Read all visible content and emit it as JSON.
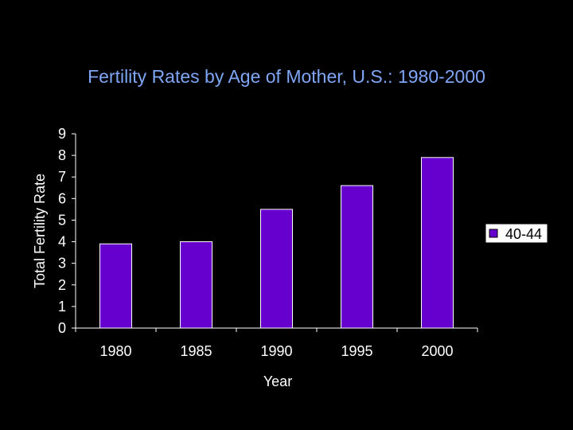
{
  "colors": {
    "background": "#000000",
    "bar": "#6600cc",
    "bar_border": "#ffffff",
    "title": "#7fa6f5",
    "text": "#ffffff"
  },
  "chart_data": {
    "type": "bar",
    "title": "Fertility Rates by Age of Mother, U.S.: 1980-2000",
    "xlabel": "Year",
    "ylabel": "Total Fertility Rate",
    "categories": [
      "1980",
      "1985",
      "1990",
      "1995",
      "2000"
    ],
    "series": [
      {
        "name": "40-44",
        "values": [
          3.9,
          4.0,
          5.5,
          6.6,
          7.9
        ]
      }
    ],
    "ylim": [
      0,
      9
    ],
    "yticks": [
      "0",
      "1",
      "2",
      "3",
      "4",
      "5",
      "6",
      "7",
      "8",
      "9"
    ],
    "grid": false,
    "legend_position": "right"
  }
}
